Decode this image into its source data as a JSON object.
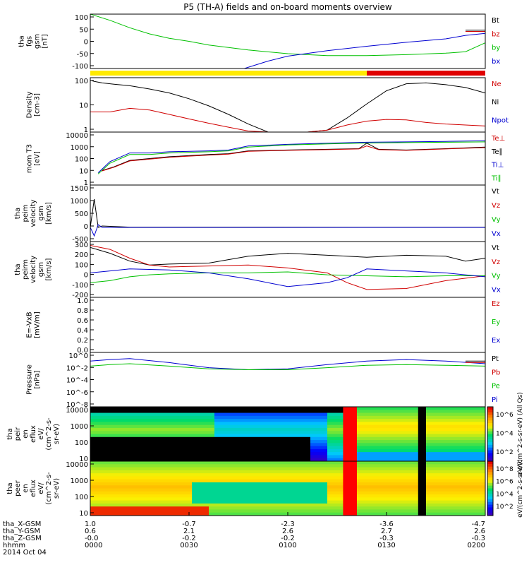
{
  "title": "P5 (TH-A) fields and on-board moments overview",
  "chart_data": [
    {
      "type": "line",
      "id": "fgs",
      "ylabel": [
        "tha",
        "fgs",
        "gsm",
        "[nT]"
      ],
      "yticks": [
        "100",
        "50",
        "0",
        "-50",
        "-100"
      ],
      "ylim": [
        -110,
        110
      ],
      "legend": [
        {
          "name": "Bt",
          "color": "#000000"
        },
        {
          "name": "bz",
          "color": "#d00000"
        },
        {
          "name": "by",
          "color": "#00c000"
        },
        {
          "name": "bx",
          "color": "#0000d0"
        }
      ],
      "series": [
        {
          "name": "Bt",
          "color": "#000000",
          "x": [
            9.5,
            10,
            10.2
          ],
          "y": [
            45,
            45,
            45
          ]
        },
        {
          "name": "bz",
          "color": "#d00000",
          "x": [
            9.5,
            10,
            10.2
          ],
          "y": [
            40,
            40,
            40
          ]
        },
        {
          "name": "by",
          "color": "#00c000",
          "x": [
            0,
            0.5,
            1,
            1.5,
            2,
            2.5,
            3,
            4,
            5,
            6,
            7,
            8,
            9,
            9.5,
            10,
            10.2
          ],
          "y": [
            110,
            85,
            55,
            30,
            12,
            0,
            -15,
            -35,
            -50,
            -58,
            -58,
            -54,
            -48,
            -42,
            -6,
            -6
          ]
        },
        {
          "name": "bx",
          "color": "#0000d0",
          "x": [
            3.9,
            4.5,
            5,
            6,
            7,
            8,
            9,
            9.5,
            10,
            10.2
          ],
          "y": [
            -110,
            -80,
            -60,
            -38,
            -20,
            -4,
            10,
            24,
            32,
            32
          ]
        }
      ]
    },
    {
      "type": "line",
      "id": "density",
      "ylabel": [
        "Density",
        "[cm-3]"
      ],
      "yticks": [
        "100",
        "10",
        "1"
      ],
      "log": true,
      "ylim": [
        0.4,
        200
      ],
      "legend": [
        {
          "name": "Ne",
          "color": "#d00000"
        },
        {
          "name": "Ni",
          "color": "#000000"
        },
        {
          "name": "Npot",
          "color": "#0000d0"
        }
      ],
      "series": [
        {
          "name": "Ni",
          "color": "#000000",
          "x": [
            0,
            0.1,
            0.3,
            0.6,
            1,
            1.5,
            2,
            2.5,
            3,
            3.5,
            4,
            4.5,
            5,
            5.5,
            6,
            6.5,
            7,
            7.5,
            8,
            8.5,
            9,
            9.5,
            10
          ],
          "y": [
            150,
            130,
            110,
            95,
            80,
            55,
            35,
            18,
            8,
            3,
            1,
            0.4,
            0.3,
            0.32,
            0.5,
            2,
            10,
            45,
            100,
            110,
            90,
            65,
            35
          ]
        },
        {
          "name": "Ne",
          "color": "#d00000",
          "x": [
            0,
            0.5,
            1,
            1.5,
            2,
            2.5,
            3,
            3.5,
            4,
            4.5,
            5,
            5.5,
            6,
            6.5,
            7,
            7.5,
            8,
            8.5,
            9,
            9.5,
            10
          ],
          "y": [
            4,
            4,
            6,
            5,
            3,
            1.8,
            1.1,
            0.7,
            0.45,
            0.35,
            0.32,
            0.35,
            0.5,
            0.9,
            1.4,
            1.7,
            1.6,
            1.2,
            1.0,
            0.9,
            0.8
          ]
        }
      ]
    },
    {
      "type": "line",
      "id": "mom_temp",
      "ylabel": [
        "mom T3",
        "[eV]"
      ],
      "yticks": [
        "10000",
        "1000",
        "100",
        "10",
        "1"
      ],
      "log": true,
      "ylim": [
        1,
        20000
      ],
      "legend": [
        {
          "name": "Te⊥",
          "color": "#d00000"
        },
        {
          "name": "Te∥",
          "color": "#000000"
        },
        {
          "name": "Ti⊥",
          "color": "#0000d0"
        },
        {
          "name": "Ti∥",
          "color": "#00c000"
        }
      ],
      "series": [
        {
          "name": "Ti⊥",
          "color": "#0000d0",
          "x": [
            0.2,
            0.5,
            1,
            1.5,
            2,
            3,
            3.5,
            4,
            5,
            6,
            7,
            8,
            9,
            10
          ],
          "y": [
            10,
            80,
            400,
            400,
            500,
            600,
            700,
            1500,
            2000,
            2500,
            3000,
            3200,
            3500,
            4000
          ]
        },
        {
          "name": "Ti∥",
          "color": "#00c000",
          "x": [
            0.2,
            0.5,
            1,
            1.5,
            2,
            3,
            3.5,
            4,
            5,
            6,
            7,
            8,
            9,
            10
          ],
          "y": [
            8,
            60,
            300,
            300,
            400,
            500,
            600,
            1200,
            1800,
            2200,
            2600,
            2800,
            3000,
            3200
          ]
        },
        {
          "name": "Te∥",
          "color": "#000000",
          "x": [
            0.3,
            0.6,
            1,
            2,
            3,
            3.5,
            4,
            5,
            6,
            6.8,
            7,
            7.3,
            8,
            9,
            10
          ],
          "y": [
            15,
            30,
            100,
            200,
            300,
            350,
            600,
            700,
            800,
            900,
            2500,
            800,
            700,
            900,
            1200
          ]
        },
        {
          "name": "Te⊥",
          "color": "#d00000",
          "x": [
            0.3,
            0.6,
            1,
            2,
            3,
            3.5,
            4,
            5,
            6,
            6.8,
            7,
            7.3,
            8,
            9,
            10
          ],
          "y": [
            14,
            28,
            90,
            180,
            270,
            320,
            550,
            650,
            750,
            850,
            1500,
            750,
            650,
            850,
            1100
          ]
        }
      ]
    },
    {
      "type": "line",
      "id": "peim_vel",
      "ylabel": [
        "tha",
        "peim",
        "velocity",
        "gsm",
        "[km/s]"
      ],
      "yticks": [
        "1500",
        "1000",
        "500",
        "0",
        "-500"
      ],
      "ylim": [
        -500,
        1500
      ],
      "legend": [
        {
          "name": "Vt",
          "color": "#000000"
        },
        {
          "name": "Vz",
          "color": "#d00000"
        },
        {
          "name": "Vy",
          "color": "#00c000"
        },
        {
          "name": "Vx",
          "color": "#0000d0"
        }
      ],
      "series": [
        {
          "name": "Vt",
          "color": "#000000",
          "x": [
            0,
            0.1,
            0.2,
            0.3,
            1,
            10
          ],
          "y": [
            0,
            1000,
            0,
            50,
            10,
            5
          ]
        },
        {
          "name": "Vx",
          "color": "#0000d0",
          "x": [
            0,
            0.1,
            0.2,
            0.3,
            1,
            10
          ],
          "y": [
            0,
            -300,
            100,
            0,
            0,
            0
          ]
        }
      ]
    },
    {
      "type": "line",
      "id": "peir_vel",
      "ylabel": [
        "tha",
        "peirm",
        "velocity",
        "gsm",
        "[km/s]"
      ],
      "yticks": [
        "300",
        "200",
        "100",
        "0",
        "-100",
        "-200"
      ],
      "ylim": [
        -250,
        320
      ],
      "legend": [
        {
          "name": "Vt",
          "color": "#000000"
        },
        {
          "name": "Vz",
          "color": "#d00000"
        },
        {
          "name": "Vy",
          "color": "#00c000"
        },
        {
          "name": "Vx",
          "color": "#0000d0"
        }
      ],
      "series": [
        {
          "name": "Vt",
          "color": "#000000",
          "x": [
            0,
            0.5,
            1,
            1.5,
            2,
            3,
            4,
            5,
            6,
            7,
            8,
            9,
            9.5,
            10
          ],
          "y": [
            260,
            200,
            120,
            80,
            90,
            100,
            170,
            200,
            180,
            160,
            180,
            170,
            120,
            150
          ]
        },
        {
          "name": "Vz",
          "color": "#d00000",
          "x": [
            0,
            0.5,
            1,
            1.5,
            2,
            3,
            4,
            5,
            6,
            6.5,
            7,
            8,
            9,
            10
          ],
          "y": [
            280,
            240,
            150,
            80,
            60,
            70,
            80,
            50,
            0,
            -100,
            -170,
            -160,
            -80,
            -30
          ]
        },
        {
          "name": "Vy",
          "color": "#00c000",
          "x": [
            0,
            0.5,
            1,
            1.5,
            2,
            3,
            4,
            5,
            6,
            7,
            8,
            9,
            10
          ],
          "y": [
            -100,
            -80,
            -40,
            -20,
            -10,
            0,
            0,
            10,
            -20,
            -30,
            -40,
            -30,
            -30
          ]
        },
        {
          "name": "Vx",
          "color": "#0000d0",
          "x": [
            0,
            0.5,
            1,
            2,
            3,
            4,
            5,
            6,
            6.5,
            7,
            8,
            9,
            10
          ],
          "y": [
            0,
            20,
            40,
            30,
            0,
            -60,
            -140,
            -100,
            -50,
            40,
            20,
            0,
            -40
          ]
        }
      ]
    },
    {
      "type": "line",
      "id": "efield",
      "ylabel": [
        "E=-VxB",
        "[mV/m]"
      ],
      "yticks": [
        "1.0",
        "0.8",
        "0.6",
        "0.4",
        "0.2",
        "0.0"
      ],
      "ylim": [
        0,
        1
      ],
      "legend": [
        {
          "name": "Ez",
          "color": "#d00000"
        },
        {
          "name": "Ey",
          "color": "#00c000"
        },
        {
          "name": "Ex",
          "color": "#0000d0"
        }
      ],
      "series": []
    },
    {
      "type": "line",
      "id": "pressure",
      "ylabel": [
        "Pressure",
        "[nPa]"
      ],
      "yticks": [
        "10^0",
        "10^-2",
        "10^-4",
        "10^-6",
        "10^-8"
      ],
      "log": true,
      "ylim": [
        1e-09,
        50
      ],
      "legend": [
        {
          "name": "Pt",
          "color": "#000000"
        },
        {
          "name": "Pb",
          "color": "#d00000"
        },
        {
          "name": "Pe",
          "color": "#00c000"
        },
        {
          "name": "Pi",
          "color": "#0000d0"
        }
      ],
      "series": [
        {
          "name": "Pi",
          "color": "#0000d0",
          "x": [
            0,
            0.5,
            1,
            2,
            3,
            4,
            5,
            6,
            7,
            8,
            9,
            10
          ],
          "y": [
            1,
            2,
            3,
            0.5,
            0.05,
            0.02,
            0.03,
            0.2,
            1,
            2,
            1,
            0.3
          ]
        },
        {
          "name": "Pe",
          "color": "#00c000",
          "x": [
            0,
            0.5,
            1,
            2,
            3,
            4,
            5,
            6,
            7,
            8,
            9,
            10
          ],
          "y": [
            0.1,
            0.2,
            0.3,
            0.1,
            0.03,
            0.02,
            0.02,
            0.05,
            0.15,
            0.2,
            0.15,
            0.1
          ]
        },
        {
          "name": "Pb",
          "color": "#d00000",
          "x": [
            9.5,
            10
          ],
          "y": [
            0.5,
            0.5
          ]
        },
        {
          "name": "Pt",
          "color": "#000000",
          "x": [
            9.5,
            10
          ],
          "y": [
            1,
            1
          ]
        }
      ]
    },
    {
      "type": "heatmap",
      "id": "peir_eflux",
      "ylabel": [
        "tha",
        "peir",
        "en",
        "eflux",
        "eV/",
        "(cm^2-s-",
        "sr-eV)"
      ],
      "yticks": [
        "10000",
        "1000",
        "100",
        "10"
      ],
      "colorbar_title": "eV/(cm^2-s-sr-eV) (All Qs)",
      "colorbar_ticks": [
        "10^6",
        "10^4",
        "10^2"
      ]
    },
    {
      "type": "heatmap",
      "id": "peer_eflux",
      "ylabel": [
        "tha",
        "peer",
        "en",
        "eflux",
        "eV/",
        "(cm^2-s-",
        "sr-eV)"
      ],
      "yticks": [
        "10000",
        "1000",
        "100",
        "10"
      ],
      "colorbar_title": "eV/(cm^2-s-sr-eV)",
      "colorbar_ticks": [
        "10^8",
        "10^6",
        "10^4",
        "10^2"
      ]
    }
  ],
  "status_bar": {
    "segments": [
      {
        "from": 0,
        "to": 7,
        "color": "#ffea00"
      },
      {
        "from": 7,
        "to": 10,
        "color": "#e00000"
      }
    ]
  },
  "xaxis": {
    "row_labels": [
      "tha_X-GSM",
      "tha_Y-GSM",
      "tha_Z-GSM",
      "hhmm",
      "2014 Oct 04"
    ],
    "ticks": [
      {
        "x": 0,
        "vals": [
          "1.0",
          "0.6",
          "-0.0",
          "0000"
        ]
      },
      {
        "x": 2.5,
        "vals": [
          "-0.7",
          "2.1",
          "-0.2",
          "0030"
        ]
      },
      {
        "x": 5,
        "vals": [
          "-2.3",
          "2.6",
          "-0.2",
          "0100"
        ]
      },
      {
        "x": 7.5,
        "vals": [
          "-3.6",
          "2.7",
          "-0.3",
          "0130"
        ]
      },
      {
        "x": 10,
        "vals": [
          "-4.7",
          "2.6",
          "-0.3",
          "0200"
        ]
      }
    ]
  }
}
